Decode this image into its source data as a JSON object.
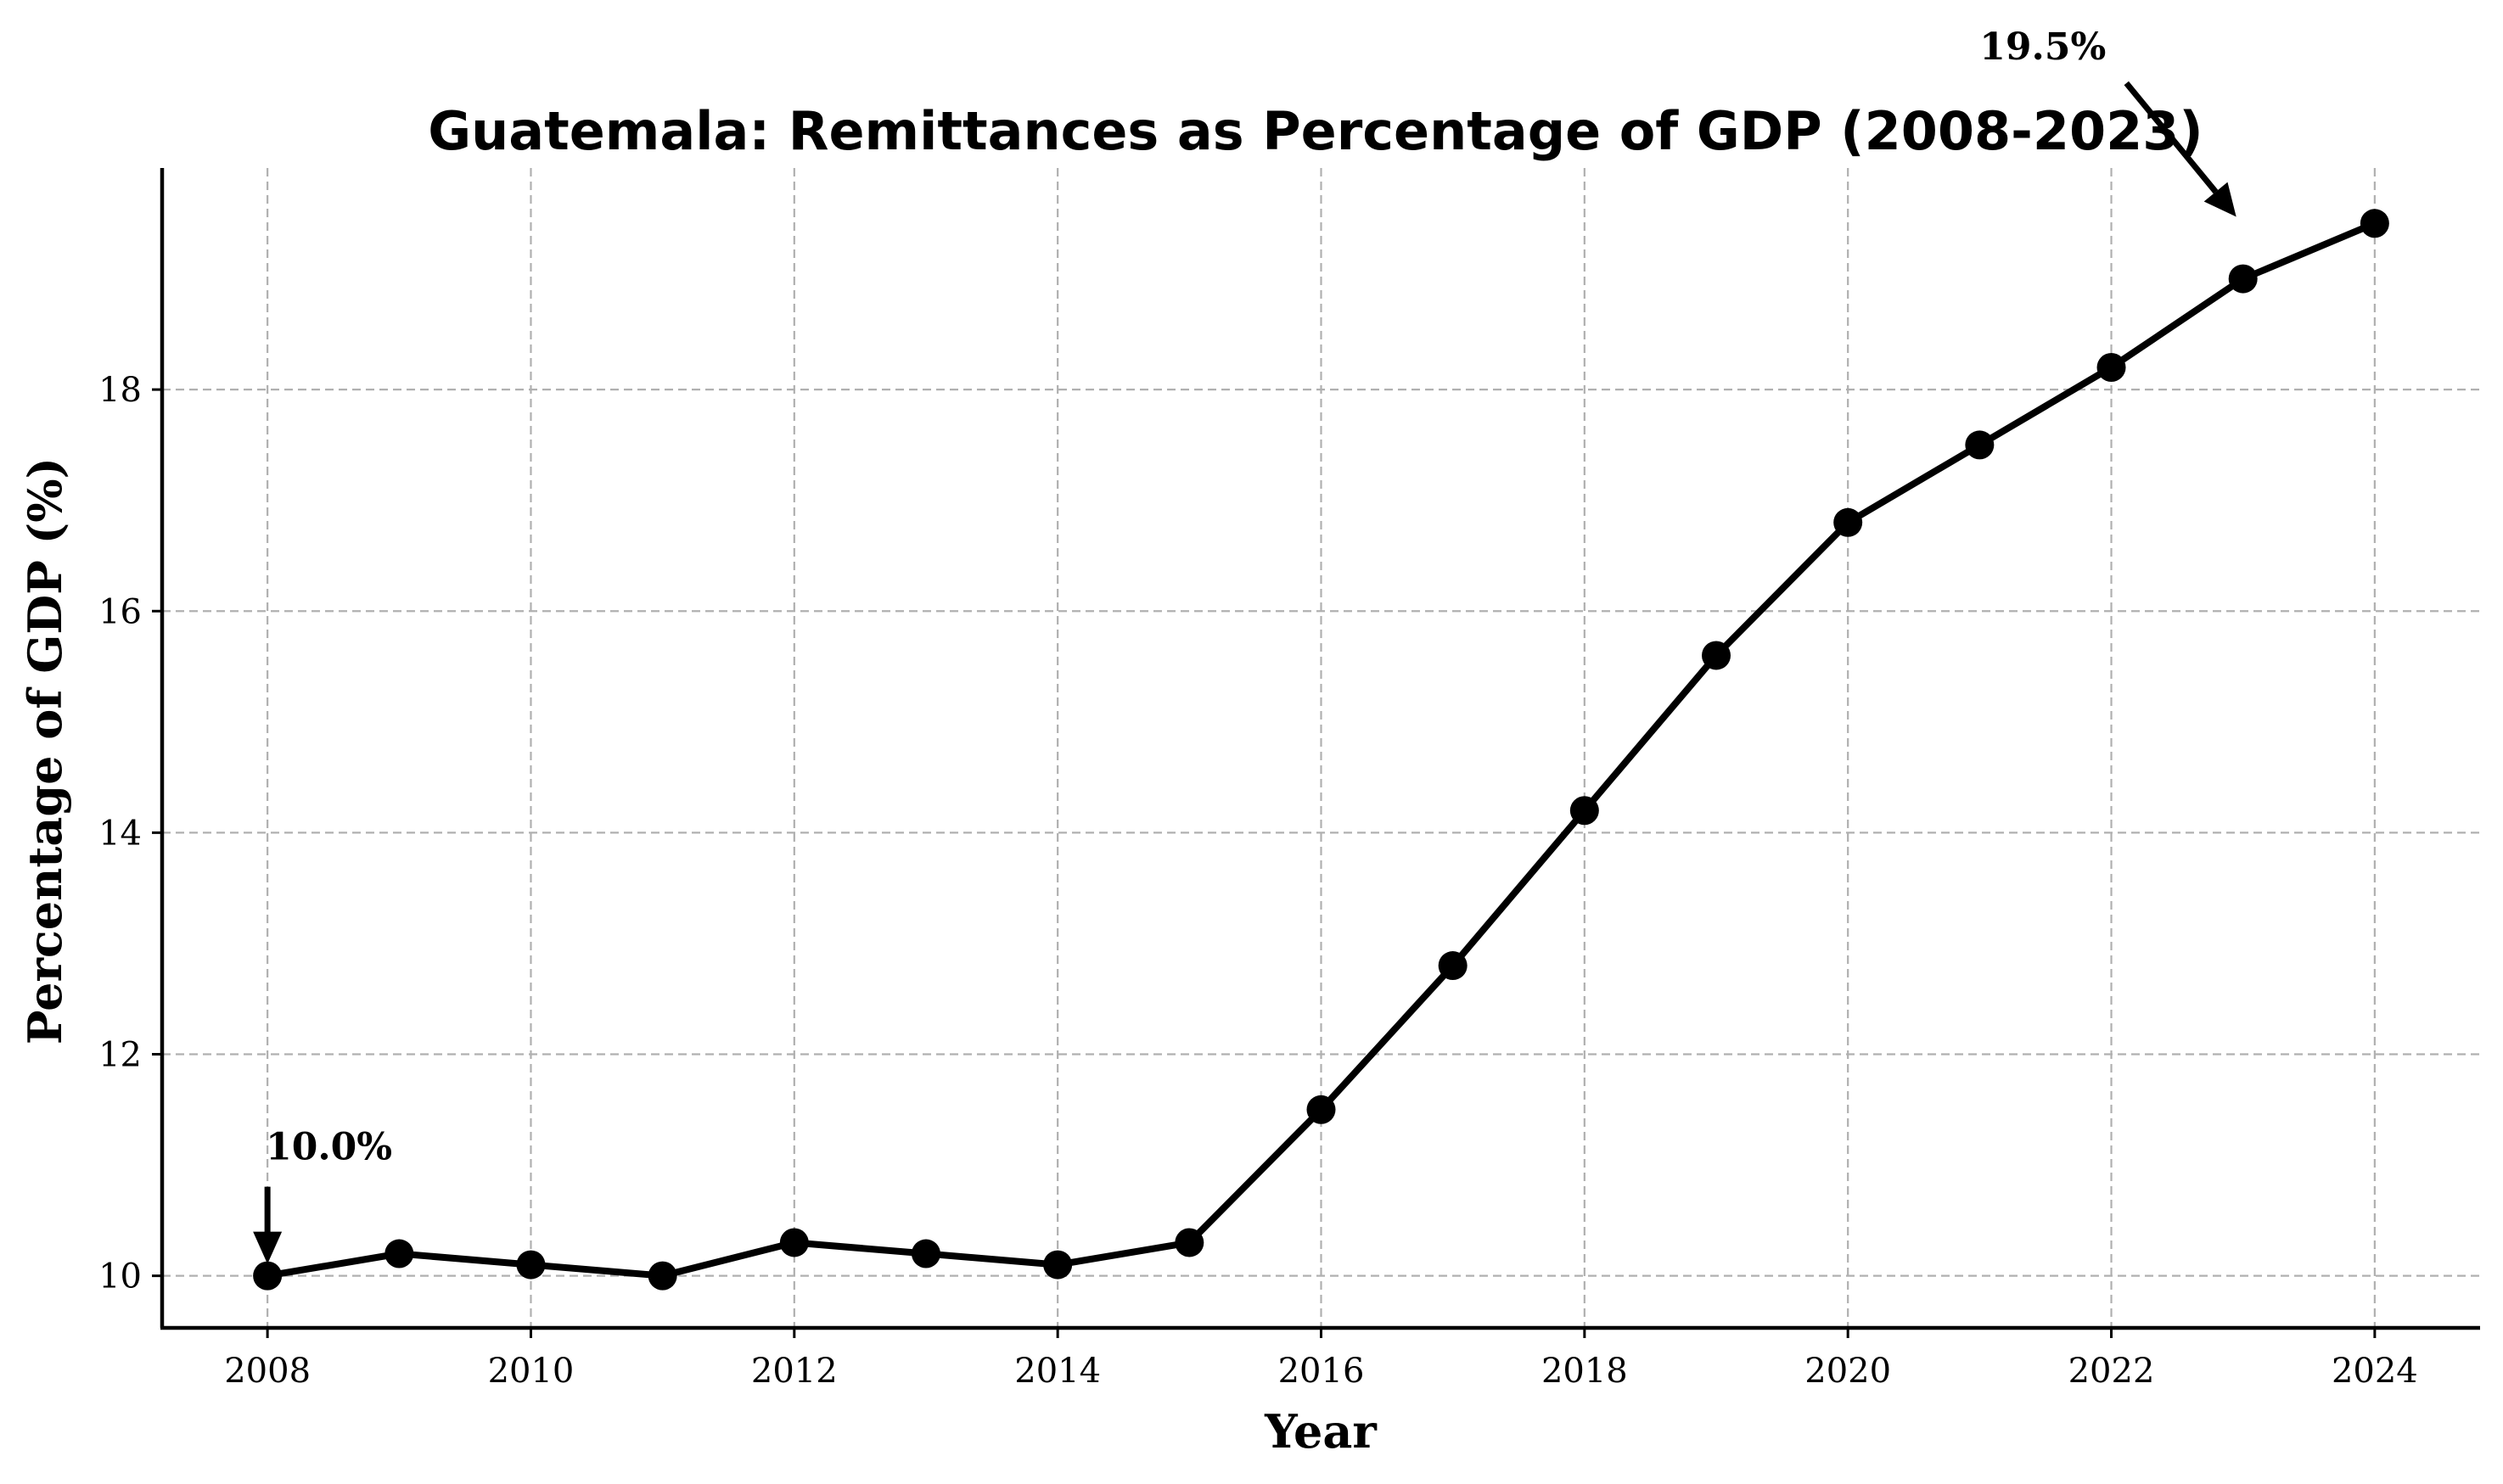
{
  "chart_data": {
    "type": "line",
    "title": "Guatemala: Remittances as Percentage of GDP (2008-2023)",
    "xlabel": "Year",
    "ylabel": "Percentage of GDP (%)",
    "xlim": [
      2007.2,
      2024.8
    ],
    "ylim": [
      9.53,
      20.0
    ],
    "x_ticks": [
      2008,
      2010,
      2012,
      2014,
      2016,
      2018,
      2020,
      2022,
      2024
    ],
    "y_ticks": [
      10,
      12,
      14,
      16,
      18
    ],
    "grid": true,
    "series": [
      {
        "x": [
          2008,
          2009,
          2010,
          2011,
          2012,
          2013,
          2014,
          2015,
          2016,
          2017,
          2018,
          2019,
          2020,
          2021,
          2022,
          2023,
          2024
        ],
        "values": [
          10.0,
          10.2,
          10.1,
          10.0,
          10.3,
          10.2,
          10.1,
          10.3,
          11.5,
          12.8,
          14.2,
          15.6,
          16.8,
          17.5,
          18.2,
          19.0,
          19.5
        ],
        "color": "#000000",
        "marker": "circle"
      }
    ],
    "annotations": [
      {
        "text": "10.0%",
        "x": 2008,
        "y": 10.0
      },
      {
        "text": "19.5%",
        "x": 2023,
        "y": 19.5
      }
    ]
  }
}
